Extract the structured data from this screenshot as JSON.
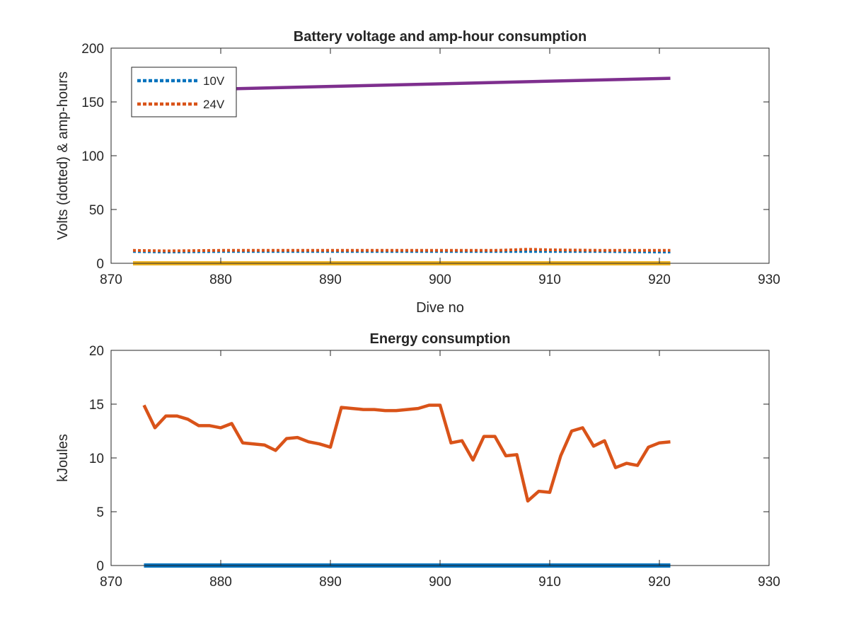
{
  "chart_data": [
    {
      "type": "line",
      "title": "Battery voltage and amp-hour consumption",
      "xlabel": "Dive no",
      "ylabel": "Volts (dotted) & amp-hours",
      "xlim": [
        870,
        930
      ],
      "ylim": [
        0,
        200
      ],
      "xticks": [
        870,
        880,
        890,
        900,
        910,
        920,
        930
      ],
      "yticks": [
        0,
        50,
        100,
        150,
        200
      ],
      "grid": false,
      "legend_position": "top-left",
      "series": [
        {
          "name": "10V",
          "style": "dotted",
          "color": "#0072BD",
          "x": [
            872,
            875,
            880,
            885,
            890,
            895,
            900,
            905,
            910,
            915,
            920,
            921
          ],
          "y": [
            11,
            10.5,
            11,
            11,
            11,
            11,
            11,
            11,
            11,
            11,
            10.5,
            10.5
          ]
        },
        {
          "name": "24V",
          "style": "dotted",
          "color": "#D95319",
          "x": [
            872,
            875,
            880,
            885,
            890,
            895,
            900,
            905,
            908,
            910,
            915,
            920,
            921
          ],
          "y": [
            12,
            11.5,
            12,
            12,
            12,
            12,
            12,
            12,
            13,
            12.5,
            12,
            12,
            12
          ]
        },
        {
          "style": "solid",
          "color": "#7E2F8E",
          "x": [
            872,
            921
          ],
          "y": [
            160,
            172
          ]
        },
        {
          "style": "solid",
          "color": "#EDB120",
          "x": [
            872,
            921
          ],
          "y": [
            0,
            0
          ]
        }
      ]
    },
    {
      "type": "line",
      "title": "Energy consumption",
      "xlabel": "",
      "ylabel": "kJoules",
      "xlim": [
        870,
        930
      ],
      "ylim": [
        0,
        20
      ],
      "xticks": [
        870,
        880,
        890,
        900,
        910,
        920,
        930
      ],
      "yticks": [
        0,
        5,
        10,
        15,
        20
      ],
      "grid": false,
      "series": [
        {
          "style": "solid",
          "color": "#D95319",
          "x": [
            873,
            874,
            875,
            876,
            877,
            878,
            879,
            880,
            881,
            882,
            883,
            884,
            885,
            886,
            887,
            888,
            889,
            890,
            891,
            892,
            893,
            894,
            895,
            896,
            897,
            898,
            899,
            900,
            901,
            902,
            903,
            904,
            905,
            906,
            907,
            908,
            909,
            910,
            911,
            912,
            913,
            914,
            915,
            916,
            917,
            918,
            919,
            920,
            921
          ],
          "y": [
            14.9,
            12.8,
            13.9,
            13.9,
            13.6,
            13.0,
            13.0,
            12.8,
            13.2,
            11.4,
            11.3,
            11.2,
            10.7,
            11.8,
            11.9,
            11.5,
            11.3,
            11.0,
            14.7,
            14.6,
            14.5,
            14.5,
            14.4,
            14.4,
            14.5,
            14.6,
            14.9,
            14.9,
            11.4,
            11.6,
            9.8,
            12.0,
            12.0,
            10.2,
            10.3,
            6.0,
            6.9,
            6.8,
            10.2,
            12.5,
            12.8,
            11.1,
            11.6,
            9.1,
            9.5,
            9.3,
            11.0,
            11.4,
            11.5
          ]
        },
        {
          "style": "solid",
          "color": "#0072BD",
          "x": [
            873,
            921
          ],
          "y": [
            0,
            0
          ]
        }
      ]
    }
  ]
}
